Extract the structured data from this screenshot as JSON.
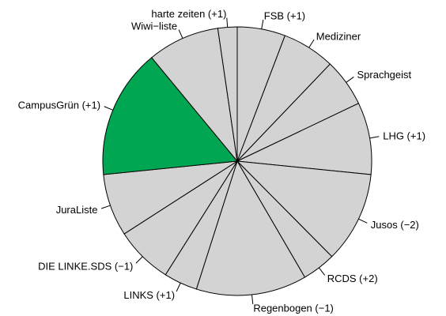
{
  "chart_data": {
    "type": "pie",
    "title": "",
    "direction": "clockwise",
    "start_at": "top",
    "slices": [
      {
        "label": "FSB (+1)",
        "value": 5,
        "color": "#d3d3d3"
      },
      {
        "label": "Mediziner",
        "value": 5.5,
        "color": "#d3d3d3"
      },
      {
        "label": "Sprachgeist",
        "value": 5,
        "color": "#d3d3d3"
      },
      {
        "label": "LHG (+1)",
        "value": 7.5,
        "color": "#d3d3d3"
      },
      {
        "label": "Jusos (−2)",
        "value": 9.5,
        "color": "#d3d3d3"
      },
      {
        "label": "RCDS (+2)",
        "value": 3.5,
        "color": "#d3d3d3"
      },
      {
        "label": "Regenbogen (−1)",
        "value": 11.5,
        "color": "#d3d3d3"
      },
      {
        "label": "LINKS (+1)",
        "value": 3.5,
        "color": "#d3d3d3"
      },
      {
        "label": "DIE LINKE.SDS (−1)",
        "value": 6,
        "color": "#d3d3d3"
      },
      {
        "label": "JuraListe",
        "value": 6.5,
        "color": "#d3d3d3"
      },
      {
        "label": "CampusGrün (+1)",
        "value": 13.5,
        "color": "#00a651"
      },
      {
        "label": "Wiwi−liste",
        "value": 7.5,
        "color": "#d3d3d3"
      },
      {
        "label": "harte zeiten (+1)",
        "value": 2,
        "color": "#d3d3d3"
      }
    ]
  }
}
